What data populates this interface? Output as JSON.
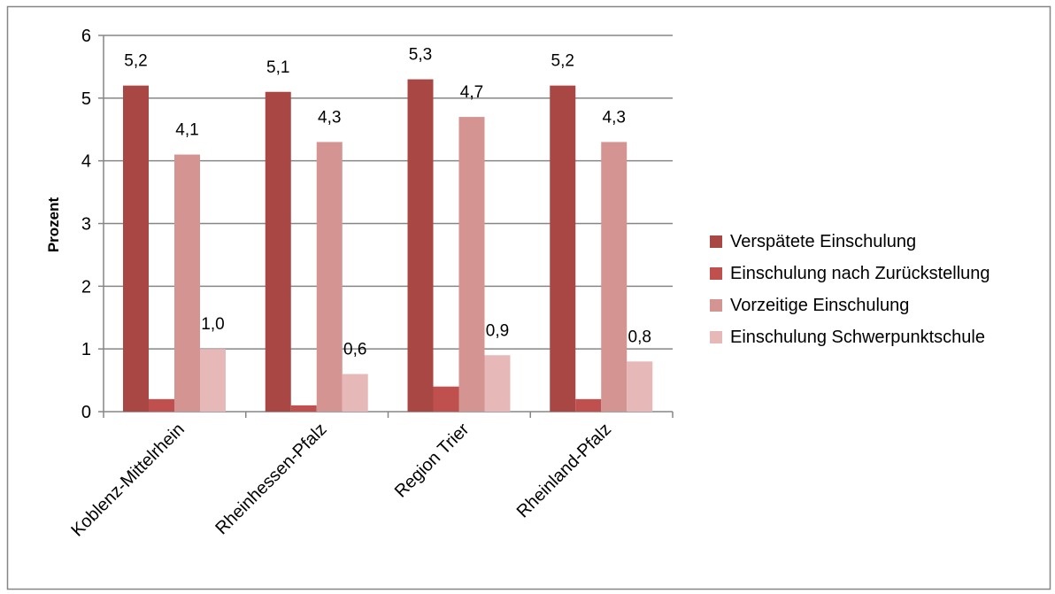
{
  "chart_data": {
    "type": "bar",
    "categories": [
      "Koblenz-Mittelrhein",
      "Rheinhessen-Pfalz",
      "Region Trier",
      "Rheinland-Pfalz"
    ],
    "series": [
      {
        "name": "Verspätete Einschulung",
        "values": [
          5.2,
          5.1,
          5.3,
          5.2
        ],
        "data_labels": [
          "5,2",
          "5,1",
          "5,3",
          "5,2"
        ],
        "color": "#A94744"
      },
      {
        "name": "Einschulung nach Zurückstellung",
        "values": [
          0.2,
          0.1,
          0.4,
          0.2
        ],
        "data_labels": [
          "",
          "",
          "",
          ""
        ],
        "color": "#C0504D"
      },
      {
        "name": "Vorzeitige Einschulung",
        "values": [
          4.1,
          4.3,
          4.7,
          4.3
        ],
        "data_labels": [
          "4,1",
          "4,3",
          "4,7",
          "4,3"
        ],
        "color": "#D49492"
      },
      {
        "name": "Einschulung Schwerpunktschule",
        "values": [
          1.0,
          0.6,
          0.9,
          0.8
        ],
        "data_labels": [
          "1,0",
          "0,6",
          "0,9",
          "0,8"
        ],
        "color": "#E6B9B8"
      }
    ],
    "ylabel": "Prozent",
    "xlabel": "",
    "ylim": [
      0,
      6
    ],
    "yticks": [
      "0",
      "1",
      "2",
      "3",
      "4",
      "5",
      "6"
    ],
    "grid": true,
    "legend_position": "right",
    "colors": {
      "gridline": "#868686",
      "frame": "#868686"
    }
  }
}
